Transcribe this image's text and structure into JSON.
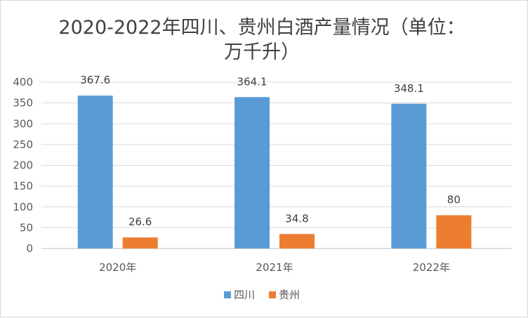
{
  "chart_data": {
    "type": "bar",
    "title_lines": [
      "2020-2022年四川、贵州白酒产量情况（单位：",
      "万千升）"
    ],
    "categories": [
      "2020年",
      "2021年",
      "2022年"
    ],
    "series": [
      {
        "name": "四川",
        "values": [
          367.6,
          364.1,
          348.1
        ],
        "color": "#5B9BD5"
      },
      {
        "name": "贵州",
        "values": [
          26.6,
          34.8,
          80
        ],
        "color": "#ED7D31"
      }
    ],
    "data_labels": [
      [
        "367.6",
        "364.1",
        "348.1"
      ],
      [
        "26.6",
        "34.8",
        "80"
      ]
    ],
    "ylim": [
      0,
      400
    ],
    "yticks": [
      0,
      50,
      100,
      150,
      200,
      250,
      300,
      350,
      400
    ],
    "grid": true,
    "legend": "bottom",
    "xlabel": "",
    "ylabel": ""
  }
}
